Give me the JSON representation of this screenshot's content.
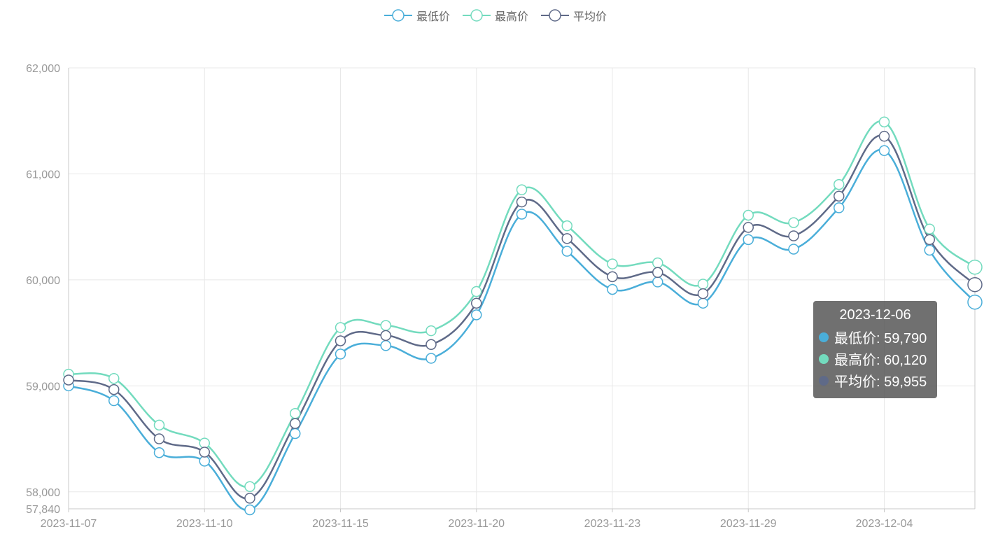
{
  "legend": [
    "最低价",
    "最高价",
    "平均价"
  ],
  "colors": {
    "low": "#4aaed9",
    "high": "#73dbbe",
    "avg": "#5f6a88",
    "grid": "#e8e8e8",
    "axis": "#c8c8c8",
    "label": "#999999"
  },
  "chart_data": {
    "type": "line",
    "smooth": true,
    "x": [
      "2023-11-07",
      "2023-11-08",
      "2023-11-09",
      "2023-11-10",
      "2023-11-13",
      "2023-11-14",
      "2023-11-15",
      "2023-11-16",
      "2023-11-17",
      "2023-11-20",
      "2023-11-21",
      "2023-11-22",
      "2023-11-23",
      "2023-11-24",
      "2023-11-27",
      "2023-11-29",
      "2023-11-30",
      "2023-12-01",
      "2023-12-04",
      "2023-12-05",
      "2023-12-06"
    ],
    "x_tick_labels": [
      "2023-11-07",
      "2023-11-10",
      "2023-11-15",
      "2023-11-20",
      "2023-11-23",
      "2023-11-29",
      "2023-12-04"
    ],
    "y_tick_labels": [
      "57,840",
      "58,000",
      "59,000",
      "60,000",
      "61,000",
      "62,000"
    ],
    "y_ticks": [
      57840,
      58000,
      59000,
      60000,
      61000,
      62000
    ],
    "ylim": [
      57840,
      62000
    ],
    "grid": true,
    "legend_position": "top-center",
    "series": [
      {
        "name": "最低价",
        "values": [
          59000,
          58860,
          58370,
          58290,
          57830,
          58550,
          59300,
          59380,
          59260,
          59670,
          60620,
          60270,
          59910,
          59980,
          59780,
          60380,
          60290,
          60680,
          61220,
          60280,
          59790
        ]
      },
      {
        "name": "最高价",
        "values": [
          59110,
          59070,
          58630,
          58460,
          58050,
          58740,
          59550,
          59570,
          59520,
          59890,
          60850,
          60510,
          60150,
          60160,
          59960,
          60610,
          60540,
          60900,
          61490,
          60480,
          60120
        ]
      },
      {
        "name": "平均价",
        "values": [
          59055,
          58965,
          58500,
          58375,
          57940,
          58645,
          59425,
          59475,
          59390,
          59780,
          60735,
          60390,
          60030,
          60070,
          59870,
          60495,
          60415,
          60790,
          61355,
          60380,
          59955
        ]
      }
    ],
    "tooltip": {
      "title": "2023-12-06",
      "rows": [
        "最低价: 59,790",
        "最高价: 60,120",
        "平均价: 59,955"
      ]
    }
  }
}
